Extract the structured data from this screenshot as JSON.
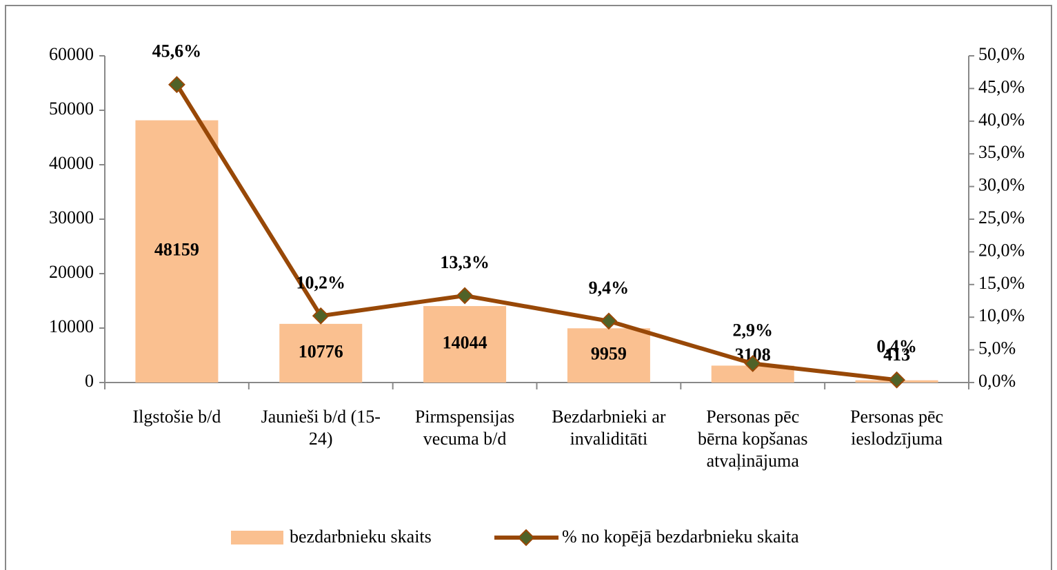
{
  "chart_data": {
    "type": "bar-line",
    "categories": [
      [
        "Ilgstošie b/d"
      ],
      [
        "Jaunieši b/d (15-",
        "24)"
      ],
      [
        "Pirmspensijas",
        "vecuma b/d"
      ],
      [
        "Bezdarbnieki ar",
        "invaliditāti"
      ],
      [
        "Personas pēc",
        "bērna kopšanas",
        "atvaļinājuma"
      ],
      [
        "Personas pēc",
        "ieslodzījuma"
      ]
    ],
    "series": [
      {
        "name": "bezdarbnieku skaits",
        "color": "#fac090",
        "values": [
          48159,
          10776,
          14044,
          9959,
          3108,
          413
        ]
      },
      {
        "name": "% no kopējā bezdarbnieku skaita",
        "color": "#984807",
        "marker_color": "#4f6228",
        "axis": "y2",
        "values": [
          45.6,
          10.2,
          13.3,
          9.4,
          2.9,
          0.4
        ],
        "value_labels": [
          "45,6%",
          "10,2%",
          "13,3%",
          "9,4%",
          "2,9%",
          "0,4%"
        ]
      }
    ],
    "ylim": [
      0,
      60000
    ],
    "yticks": [
      0,
      10000,
      20000,
      30000,
      40000,
      50000,
      60000
    ],
    "y2lim": [
      0,
      50
    ],
    "y2ticks": [
      {
        "value": 0,
        "label": "0,0%"
      },
      {
        "value": 5,
        "label": "5,0%"
      },
      {
        "value": 10,
        "label": "10,0%"
      },
      {
        "value": 15,
        "label": "15,0%"
      },
      {
        "value": 20,
        "label": "20,0%"
      },
      {
        "value": 25,
        "label": "25,0%"
      },
      {
        "value": 30,
        "label": "30,0%"
      },
      {
        "value": 35,
        "label": "35,0%"
      },
      {
        "value": 40,
        "label": "40,0%"
      },
      {
        "value": 45,
        "label": "45,0%"
      },
      {
        "value": 50,
        "label": "50,0%"
      }
    ],
    "legend": "bottom"
  }
}
